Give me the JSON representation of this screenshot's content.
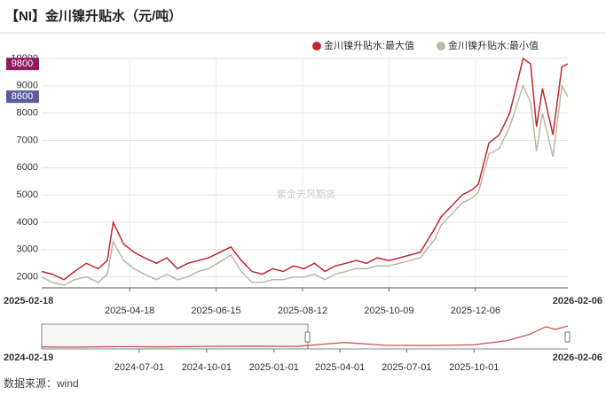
{
  "chart_data": {
    "type": "line",
    "title": "【NI】金川镍升贴水（元/吨）",
    "watermark": "紫金天风期货",
    "source": "数据来源：wind",
    "legend": "top-right",
    "grid": true,
    "x": [
      "2025-02-18",
      "2025-02-25",
      "2025-03-05",
      "2025-03-12",
      "2025-03-20",
      "2025-03-28",
      "2025-04-03",
      "2025-04-07",
      "2025-04-14",
      "2025-04-21",
      "2025-04-28",
      "2025-05-06",
      "2025-05-13",
      "2025-05-20",
      "2025-05-27",
      "2025-06-03",
      "2025-06-10",
      "2025-06-25",
      "2025-07-02",
      "2025-07-09",
      "2025-07-16",
      "2025-07-23",
      "2025-07-30",
      "2025-08-06",
      "2025-08-13",
      "2025-08-20",
      "2025-08-27",
      "2025-09-03",
      "2025-09-10",
      "2025-09-17",
      "2025-09-24",
      "2025-10-01",
      "2025-10-09",
      "2025-10-16",
      "2025-10-23",
      "2025-10-30",
      "2025-11-09",
      "2025-11-13",
      "2025-11-20",
      "2025-11-27",
      "2025-12-04",
      "2025-12-08",
      "2025-12-15",
      "2025-12-22",
      "2025-12-29",
      "2026-01-07",
      "2026-01-12",
      "2026-01-16",
      "2026-01-20",
      "2026-01-27",
      "2026-02-02",
      "2026-02-06"
    ],
    "series": [
      {
        "name": "金川镍升贴水:最大值",
        "color": "#c0282d",
        "last_label_color": "#8e1c5e",
        "values": [
          2200,
          2100,
          1900,
          2200,
          2500,
          2300,
          2600,
          4000,
          3200,
          2900,
          2700,
          2500,
          2700,
          2300,
          2500,
          2600,
          2700,
          3100,
          2600,
          2200,
          2100,
          2300,
          2200,
          2400,
          2300,
          2500,
          2200,
          2400,
          2500,
          2600,
          2500,
          2700,
          2600,
          2700,
          2800,
          2900,
          3800,
          4200,
          4600,
          5000,
          5200,
          5400,
          6900,
          7200,
          8000,
          10000,
          9800,
          7500,
          8900,
          7200,
          9700,
          9800
        ]
      },
      {
        "name": "金川镍升贴水:最小值",
        "color": "#bcb7a6",
        "last_label_color": "#5b5b9e",
        "values": [
          2000,
          1800,
          1700,
          1900,
          2000,
          1800,
          2100,
          3300,
          2600,
          2300,
          2100,
          1900,
          2100,
          1900,
          2000,
          2200,
          2300,
          2800,
          2200,
          1800,
          1800,
          1900,
          1900,
          2000,
          2000,
          2100,
          1900,
          2100,
          2200,
          2300,
          2300,
          2400,
          2400,
          2500,
          2600,
          2700,
          3400,
          3900,
          4300,
          4700,
          4900,
          5100,
          6500,
          6700,
          7500,
          9000,
          8400,
          6600,
          8000,
          6400,
          9000,
          8600
        ]
      }
    ],
    "xlim": [
      "2025-02-18",
      "2026-02-06"
    ],
    "xticks": [
      "2025-04-18",
      "2025-06-15",
      "2025-08-12",
      "2025-10-09",
      "2025-12-06"
    ],
    "ylim": [
      1600,
      10000
    ],
    "yticks": [
      2000,
      3000,
      4000,
      5000,
      6000,
      7000,
      8000,
      9000,
      10000
    ],
    "navigator": {
      "color": "#c0282d",
      "x": [
        "2024-02-19",
        "2024-04-01",
        "2024-06-01",
        "2024-08-01",
        "2024-10-01",
        "2024-12-01",
        "2025-02-01",
        "2025-04-07",
        "2025-06-01",
        "2025-08-01",
        "2025-10-01",
        "2025-11-15",
        "2025-12-15",
        "2026-01-07",
        "2026-01-20",
        "2026-02-06"
      ],
      "values": [
        1800,
        1700,
        1900,
        1800,
        2000,
        2100,
        2000,
        3500,
        2400,
        2300,
        2600,
        4200,
        6500,
        9500,
        8500,
        9800
      ],
      "xlim": [
        "2024-02-19",
        "2026-02-06"
      ],
      "xticks": [
        "2024-07-01",
        "2024-10-01",
        "2025-01-01",
        "2025-04-01",
        "2025-07-01",
        "2025-10-01"
      ]
    }
  }
}
